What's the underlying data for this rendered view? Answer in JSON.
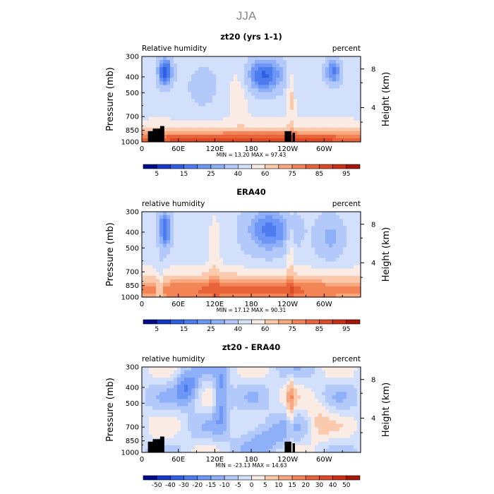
{
  "figure": {
    "title": "JJA"
  },
  "left_axis_label": "Pressure (mb)",
  "right_axis_label": "Height (km)",
  "pressure_ticks": [
    "300",
    "400",
    "500",
    "700",
    "850",
    "1000"
  ],
  "height_ticks": [
    "8",
    "4"
  ],
  "lon_ticks": [
    "0",
    "60E",
    "120E",
    "180",
    "120W",
    "60W"
  ],
  "chart_data": [
    {
      "type": "heatmap",
      "panel_id": "model",
      "title": "zt20 (yrs 1-1)",
      "left_label": "Relative humidity",
      "right_label": "percent",
      "stats": "MIN =   13.20   MAX =   97.43",
      "min": 13.2,
      "max": 97.43,
      "colorbar_labels": [
        "5",
        "15",
        "25",
        "40",
        "60",
        "75",
        "85",
        "95"
      ],
      "levels": [
        0,
        5,
        10,
        15,
        20,
        25,
        30,
        40,
        50,
        60,
        70,
        75,
        80,
        85,
        90,
        95,
        100
      ],
      "colors": [
        "#000c8c",
        "#1637c8",
        "#2f5fe2",
        "#4d7cf0",
        "#6d96f6",
        "#8eb0f8",
        "#b2c9fa",
        "#d3e0fb",
        "#faebe4",
        "#fbc9ac",
        "#f8a77f",
        "#f28456",
        "#e8633a",
        "#dc4a25",
        "#c93016",
        "#a6170b"
      ],
      "xlim": [
        0,
        360
      ],
      "ylim": [
        1000,
        300
      ],
      "yscale": "log-pressure"
    },
    {
      "type": "heatmap",
      "panel_id": "obs",
      "title": "ERA40",
      "left_label": "relative humidity",
      "right_label": "percent",
      "stats": "MIN =   17.12   MAX =   90.31",
      "min": 17.12,
      "max": 90.31,
      "colorbar_labels": [
        "5",
        "15",
        "25",
        "40",
        "60",
        "75",
        "85",
        "95"
      ],
      "levels": [
        0,
        5,
        10,
        15,
        20,
        25,
        30,
        40,
        50,
        60,
        70,
        75,
        80,
        85,
        90,
        95,
        100
      ],
      "colors": [
        "#000c8c",
        "#1637c8",
        "#2f5fe2",
        "#4d7cf0",
        "#6d96f6",
        "#8eb0f8",
        "#b2c9fa",
        "#d3e0fb",
        "#faebe4",
        "#fbc9ac",
        "#f8a77f",
        "#f28456",
        "#e8633a",
        "#dc4a25",
        "#c93016",
        "#a6170b"
      ],
      "xlim": [
        0,
        360
      ],
      "ylim": [
        1000,
        300
      ],
      "yscale": "log-pressure"
    },
    {
      "type": "heatmap",
      "panel_id": "diff",
      "title": "zt20 - ERA40",
      "left_label": "relative humidity",
      "right_label": "percent",
      "stats": "MIN =  -23.13   MAX =   14.63",
      "min": -23.13,
      "max": 14.63,
      "colorbar_labels": [
        "-50",
        "-40",
        "-30",
        "-20",
        "-15",
        "-10",
        "-5",
        "0",
        "5",
        "10",
        "15",
        "20",
        "30",
        "40",
        "50"
      ],
      "levels": [
        -60,
        -50,
        -40,
        -30,
        -20,
        -15,
        -10,
        -5,
        0,
        5,
        10,
        15,
        20,
        30,
        40,
        50,
        60
      ],
      "colors": [
        "#000c8c",
        "#1637c8",
        "#2f5fe2",
        "#4d7cf0",
        "#6d96f6",
        "#8eb0f8",
        "#b2c9fa",
        "#d3e0fb",
        "#faebe4",
        "#fbc9ac",
        "#f8a77f",
        "#f28456",
        "#e8633a",
        "#dc4a25",
        "#c93016",
        "#a6170b"
      ],
      "xlim": [
        0,
        360
      ],
      "ylim": [
        1000,
        300
      ],
      "yscale": "log-pressure"
    }
  ]
}
